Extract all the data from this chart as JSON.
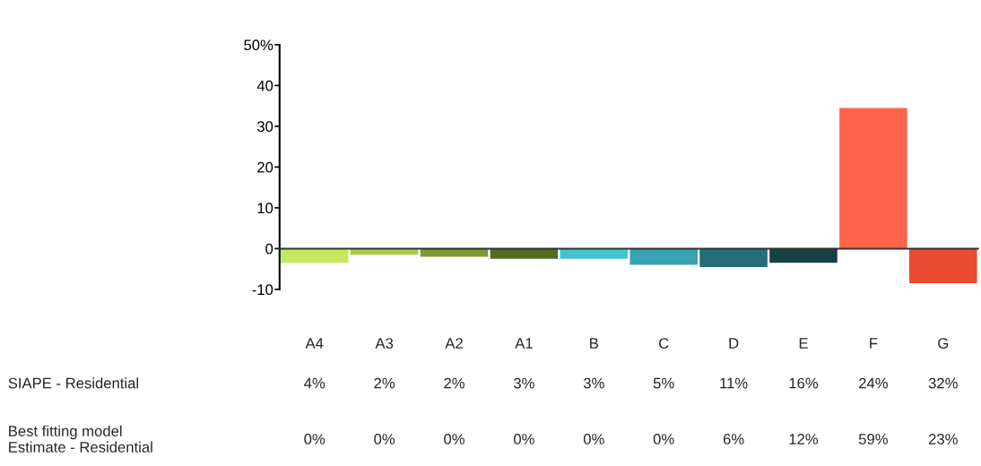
{
  "chart_data": {
    "type": "bar",
    "categories": [
      "A4",
      "A3",
      "A2",
      "A1",
      "B",
      "C",
      "D",
      "E",
      "F",
      "G"
    ],
    "values": [
      -3.5,
      -1.5,
      -2,
      -2.5,
      -2.5,
      -4,
      -4.5,
      -3.5,
      34.5,
      -8.5
    ],
    "colors": [
      "#c5e85f",
      "#a6cc3f",
      "#7b9a32",
      "#556b22",
      "#44c2d2",
      "#38a2b2",
      "#236e78",
      "#173f47",
      "#ff644a",
      "#e84b30"
    ],
    "ylim": [
      -10,
      50
    ],
    "yticks": [
      -10,
      0,
      10,
      20,
      30,
      40,
      {
        "value": 50,
        "label": "50%"
      }
    ],
    "annotations": [
      "SIAPE - Residential",
      "4%",
      "2%",
      "2%",
      "3%",
      "3%",
      "5%",
      "11%",
      "16%",
      "24%",
      "32%",
      "Best fitting model\nEstimate - Residential",
      "0%",
      "0%",
      "0%",
      "0%",
      "0%",
      "0%",
      "6%",
      "12%",
      "59%",
      "23%"
    ]
  }
}
